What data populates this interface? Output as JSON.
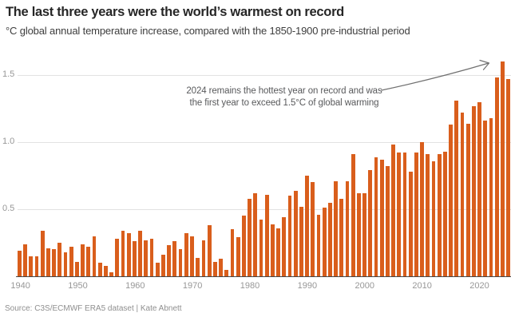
{
  "colors": {
    "bar": "#d95e1c",
    "grid": "#e2e2e2",
    "axis": "#454545",
    "tick": "#979797",
    "title": "#262626",
    "subtitle": "#3d3d3d",
    "note": "#58595b",
    "arrow": "#707070",
    "source": "#8f8f8f"
  },
  "chart_data": {
    "type": "bar",
    "title": "The last three years were the world’s warmest on record",
    "subtitle": "°C global annual temperature increase, compared with the 1850-1900 pre-industrial period",
    "year_start": 1940,
    "year_end": 2025,
    "years": [
      1940,
      1941,
      1942,
      1943,
      1944,
      1945,
      1946,
      1947,
      1948,
      1949,
      1950,
      1951,
      1952,
      1953,
      1954,
      1955,
      1956,
      1957,
      1958,
      1959,
      1960,
      1961,
      1962,
      1963,
      1964,
      1965,
      1966,
      1967,
      1968,
      1969,
      1970,
      1971,
      1972,
      1973,
      1974,
      1975,
      1976,
      1977,
      1978,
      1979,
      1980,
      1981,
      1982,
      1983,
      1984,
      1985,
      1986,
      1987,
      1988,
      1989,
      1990,
      1991,
      1992,
      1993,
      1994,
      1995,
      1996,
      1997,
      1998,
      1999,
      2000,
      2001,
      2002,
      2003,
      2004,
      2005,
      2006,
      2007,
      2008,
      2009,
      2010,
      2011,
      2012,
      2013,
      2014,
      2015,
      2016,
      2017,
      2018,
      2019,
      2020,
      2021,
      2022,
      2023,
      2024,
      2025
    ],
    "values": [
      0.19,
      0.24,
      0.15,
      0.15,
      0.34,
      0.21,
      0.2,
      0.25,
      0.18,
      0.22,
      0.11,
      0.24,
      0.22,
      0.3,
      0.1,
      0.08,
      0.03,
      0.28,
      0.34,
      0.32,
      0.26,
      0.34,
      0.27,
      0.28,
      0.1,
      0.16,
      0.23,
      0.26,
      0.2,
      0.32,
      0.3,
      0.14,
      0.27,
      0.38,
      0.11,
      0.13,
      0.05,
      0.35,
      0.29,
      0.45,
      0.58,
      0.62,
      0.42,
      0.61,
      0.39,
      0.36,
      0.44,
      0.6,
      0.64,
      0.52,
      0.75,
      0.7,
      0.46,
      0.51,
      0.55,
      0.71,
      0.58,
      0.71,
      0.91,
      0.62,
      0.62,
      0.79,
      0.89,
      0.87,
      0.82,
      0.98,
      0.92,
      0.92,
      0.78,
      0.92,
      1.0,
      0.91,
      0.86,
      0.91,
      0.93,
      1.13,
      1.31,
      1.22,
      1.14,
      1.27,
      1.3,
      1.16,
      1.18,
      1.48,
      1.6,
      1.47
    ],
    "y_ticks": [
      0.5,
      1.0,
      1.5
    ],
    "x_ticks": [
      1940,
      1950,
      1960,
      1970,
      1980,
      1990,
      2000,
      2010,
      2020
    ],
    "ylim": [
      0,
      1.65
    ],
    "grid": true,
    "legend": false,
    "annotation": {
      "line1": "2024 remains the hottest year on record and was",
      "line2": "the first year to exceed 1.5°C of global warming"
    },
    "source": "Source: C3S/ECMWF ERA5 dataset | Kate Abnett"
  }
}
